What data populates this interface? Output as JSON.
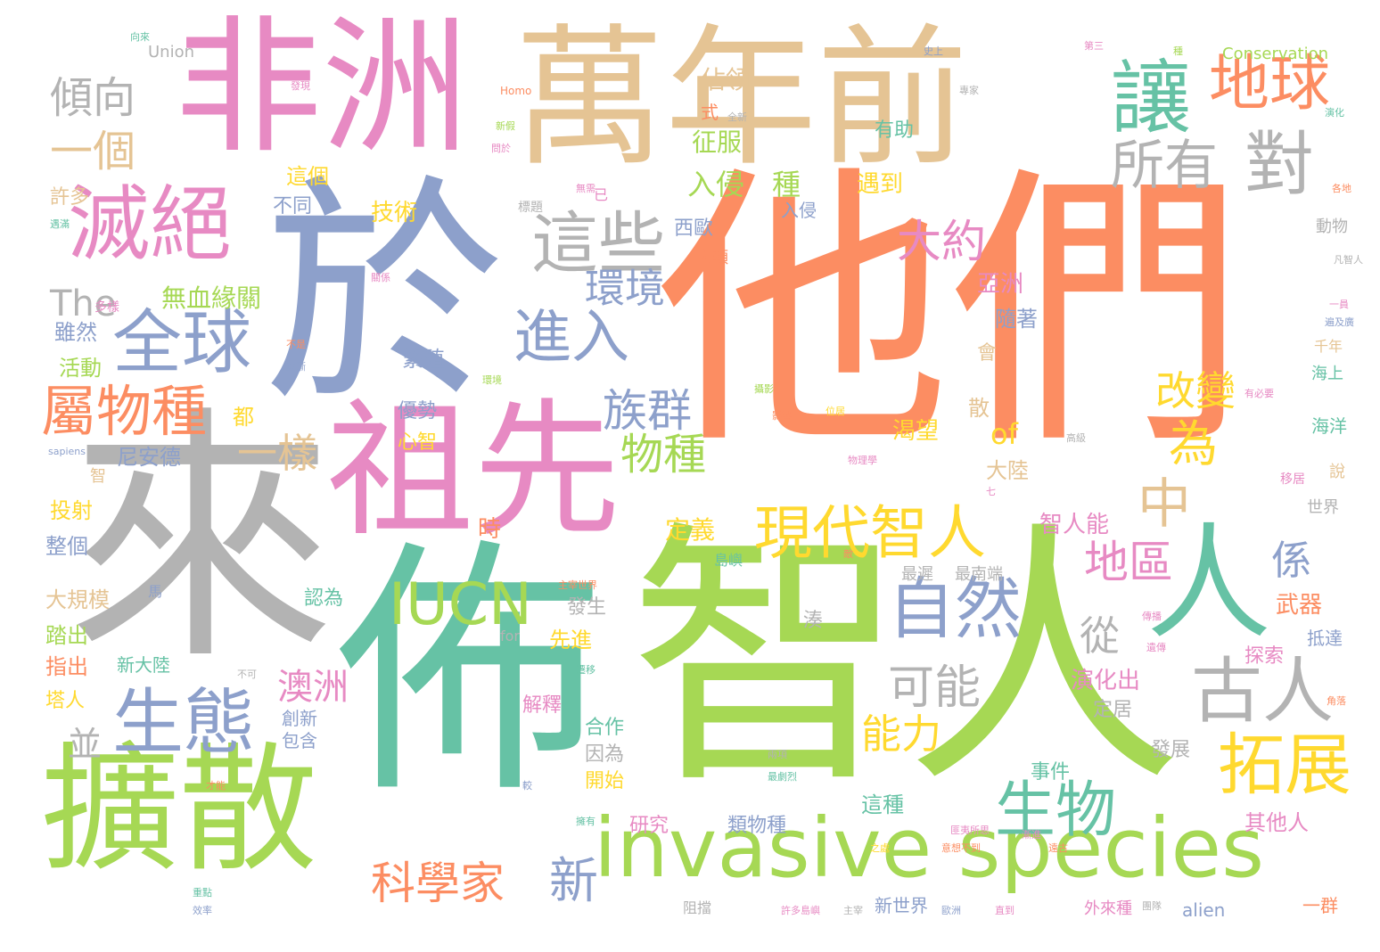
{
  "palette": {
    "orange": "#fc8d62",
    "gray": "#b3b3b3",
    "green": "#a6d854",
    "blue": "#8da0cb",
    "pink": "#e78ac3",
    "tan": "#e5c494",
    "teal": "#66c2a5",
    "yellow": "#ffd92f"
  },
  "words": [
    {
      "text": "他們",
      "color": "orange"
    },
    {
      "text": "智人",
      "color": "green"
    },
    {
      "text": "來",
      "color": "gray"
    },
    {
      "text": "佈",
      "color": "teal"
    },
    {
      "text": "於",
      "color": "blue"
    },
    {
      "text": "萬年前",
      "color": "tan"
    },
    {
      "text": "非洲",
      "color": "pink"
    },
    {
      "text": "祖先",
      "color": "pink"
    },
    {
      "text": "擴散",
      "color": "green"
    },
    {
      "text": "invasive species",
      "color": "green"
    },
    {
      "text": "人",
      "color": "teal"
    },
    {
      "text": "滅絕",
      "color": "pink"
    },
    {
      "text": "讓",
      "color": "teal"
    },
    {
      "text": "地球",
      "color": "orange"
    },
    {
      "text": "所有",
      "color": "gray"
    },
    {
      "text": "對",
      "color": "gray"
    },
    {
      "text": "這些",
      "color": "gray"
    },
    {
      "text": "全球",
      "color": "blue"
    },
    {
      "text": "生態",
      "color": "blue"
    },
    {
      "text": "自然",
      "color": "blue"
    },
    {
      "text": "古人",
      "color": "gray"
    },
    {
      "text": "拓展",
      "color": "yellow"
    },
    {
      "text": "生物",
      "color": "teal"
    },
    {
      "text": "現代智人",
      "color": "yellow"
    },
    {
      "text": "IUCN",
      "color": "green"
    },
    {
      "text": "屬物種",
      "color": "orange"
    },
    {
      "text": "進入",
      "color": "blue"
    },
    {
      "text": "族群",
      "color": "blue"
    },
    {
      "text": "地區",
      "color": "pink"
    },
    {
      "text": "科學家",
      "color": "orange"
    },
    {
      "text": "新",
      "color": "blue"
    },
    {
      "text": "傾向",
      "color": "gray"
    },
    {
      "text": "一個",
      "color": "tan"
    },
    {
      "text": "大約",
      "color": "pink"
    },
    {
      "text": "環境",
      "color": "blue"
    },
    {
      "text": "改變",
      "color": "yellow"
    },
    {
      "text": "中",
      "color": "tan"
    },
    {
      "text": "為",
      "color": "yellow"
    },
    {
      "text": "物種",
      "color": "green"
    },
    {
      "text": "可能",
      "color": "gray"
    },
    {
      "text": "能力",
      "color": "yellow"
    },
    {
      "text": "一樣",
      "color": "tan"
    },
    {
      "text": "係",
      "color": "blue"
    },
    {
      "text": "從",
      "color": "gray"
    },
    {
      "text": "澳洲",
      "color": "pink"
    },
    {
      "text": "The",
      "color": "gray"
    },
    {
      "text": "入侵",
      "color": "green"
    },
    {
      "text": "種",
      "color": "green"
    },
    {
      "text": "of",
      "color": "yellow"
    },
    {
      "text": "並",
      "color": "gray"
    },
    {
      "text": "佔領",
      "color": "tan"
    },
    {
      "text": "征服",
      "color": "green"
    },
    {
      "text": "有助",
      "color": "teal"
    },
    {
      "text": "遇到",
      "color": "yellow"
    },
    {
      "text": "技術",
      "color": "yellow"
    },
    {
      "text": "這個",
      "color": "yellow"
    },
    {
      "text": "許多",
      "color": "tan"
    },
    {
      "text": "不同",
      "color": "blue"
    },
    {
      "text": "西歐",
      "color": "blue"
    },
    {
      "text": "人類",
      "color": "orange"
    },
    {
      "text": "無血緣關",
      "color": "green"
    },
    {
      "text": "亞洲",
      "color": "pink"
    },
    {
      "text": "隨著",
      "color": "blue"
    },
    {
      "text": "雖然",
      "color": "blue"
    },
    {
      "text": "活動",
      "color": "green"
    },
    {
      "text": "繁殖",
      "color": "blue"
    },
    {
      "text": "優勢",
      "color": "blue"
    },
    {
      "text": "心智",
      "color": "yellow"
    },
    {
      "text": "都",
      "color": "yellow"
    },
    {
      "text": "渴望",
      "color": "yellow"
    },
    {
      "text": "散",
      "color": "tan"
    },
    {
      "text": "會",
      "color": "tan"
    },
    {
      "text": "尼安德",
      "color": "blue"
    },
    {
      "text": "大陸",
      "color": "tan"
    },
    {
      "text": "智人能",
      "color": "pink"
    },
    {
      "text": "定義",
      "color": "yellow"
    },
    {
      "text": "投射",
      "color": "yellow"
    },
    {
      "text": "整個",
      "color": "blue"
    },
    {
      "text": "時",
      "color": "orange"
    },
    {
      "text": "大規模",
      "color": "tan"
    },
    {
      "text": "認為",
      "color": "teal"
    },
    {
      "text": "發生",
      "color": "gray"
    },
    {
      "text": "先進",
      "color": "yellow"
    },
    {
      "text": "最遲",
      "color": "gray"
    },
    {
      "text": "最南端",
      "color": "gray"
    },
    {
      "text": "武器",
      "color": "orange"
    },
    {
      "text": "抵達",
      "color": "blue"
    },
    {
      "text": "踏出",
      "color": "green"
    },
    {
      "text": "指出",
      "color": "orange"
    },
    {
      "text": "新大陸",
      "color": "teal"
    },
    {
      "text": "塔人",
      "color": "yellow"
    },
    {
      "text": "湊",
      "color": "gray"
    },
    {
      "text": "演化出",
      "color": "pink"
    },
    {
      "text": "定居",
      "color": "gray"
    },
    {
      "text": "探索",
      "color": "pink"
    },
    {
      "text": "解釋",
      "color": "pink"
    },
    {
      "text": "創新",
      "color": "blue"
    },
    {
      "text": "包含",
      "color": "blue"
    },
    {
      "text": "合作",
      "color": "teal"
    },
    {
      "text": "因為",
      "color": "gray"
    },
    {
      "text": "開始",
      "color": "yellow"
    },
    {
      "text": "事件",
      "color": "teal"
    },
    {
      "text": "發展",
      "color": "gray"
    },
    {
      "text": "這種",
      "color": "teal"
    },
    {
      "text": "研究",
      "color": "pink"
    },
    {
      "text": "類物種",
      "color": "blue"
    },
    {
      "text": "其他人",
      "color": "pink"
    },
    {
      "text": "新世界",
      "color": "blue"
    },
    {
      "text": "一群",
      "color": "orange"
    },
    {
      "text": "外來種",
      "color": "pink"
    },
    {
      "text": "alien",
      "color": "blue"
    },
    {
      "text": "阻擋",
      "color": "gray"
    },
    {
      "text": "Union",
      "color": "gray"
    },
    {
      "text": "Conservation",
      "color": "green"
    },
    {
      "text": "Homo",
      "color": "orange"
    },
    {
      "text": "sapiens",
      "color": "blue"
    },
    {
      "text": "for",
      "color": "gray"
    },
    {
      "text": "式",
      "color": "orange"
    },
    {
      "text": "已",
      "color": "pink"
    },
    {
      "text": "標題",
      "color": "gray"
    },
    {
      "text": "入侵",
      "color": "blue"
    },
    {
      "text": "動物",
      "color": "gray"
    },
    {
      "text": "千年",
      "color": "tan"
    },
    {
      "text": "海上",
      "color": "teal"
    },
    {
      "text": "海洋",
      "color": "teal"
    },
    {
      "text": "說",
      "color": "tan"
    },
    {
      "text": "移居",
      "color": "pink"
    },
    {
      "text": "世界",
      "color": "gray"
    },
    {
      "text": "智",
      "color": "tan"
    },
    {
      "text": "多樣",
      "color": "pink"
    },
    {
      "text": "島嶼",
      "color": "teal"
    },
    {
      "text": "馬",
      "color": "blue"
    },
    {
      "text": "角落",
      "color": "orange"
    },
    {
      "text": "史上",
      "color": "blue"
    },
    {
      "text": "專家",
      "color": "gray"
    },
    {
      "text": "第三",
      "color": "pink"
    },
    {
      "text": "種",
      "color": "green"
    },
    {
      "text": "發現",
      "color": "pink"
    },
    {
      "text": "新假",
      "color": "green"
    },
    {
      "text": "問於",
      "color": "pink"
    },
    {
      "text": "全新",
      "color": "gray"
    },
    {
      "text": "無需",
      "color": "pink"
    },
    {
      "text": "遇滿",
      "color": "teal"
    },
    {
      "text": "不是",
      "color": "orange"
    },
    {
      "text": "演化",
      "color": "teal"
    },
    {
      "text": "逐漸",
      "color": "blue"
    },
    {
      "text": "影響",
      "color": "orange"
    },
    {
      "text": "位居",
      "color": "yellow"
    },
    {
      "text": "物理學",
      "color": "pink"
    },
    {
      "text": "遷移",
      "color": "teal"
    },
    {
      "text": "不可",
      "color": "gray"
    },
    {
      "text": "一員",
      "color": "pink"
    },
    {
      "text": "傳播",
      "color": "pink"
    },
    {
      "text": "擁有",
      "color": "teal"
    },
    {
      "text": "較",
      "color": "blue"
    },
    {
      "text": "才能",
      "color": "orange"
    },
    {
      "text": "重點",
      "color": "teal"
    },
    {
      "text": "效率",
      "color": "blue"
    },
    {
      "text": "許多島嶼",
      "color": "pink"
    },
    {
      "text": "主宰",
      "color": "gray"
    },
    {
      "text": "歐洲",
      "color": "blue"
    },
    {
      "text": "匪夷所思",
      "color": "pink"
    },
    {
      "text": "團隊",
      "color": "gray"
    },
    {
      "text": "意想不到",
      "color": "orange"
    },
    {
      "text": "之處",
      "color": "yellow"
    },
    {
      "text": "直到",
      "color": "pink"
    },
    {
      "text": "漸進",
      "color": "pink"
    },
    {
      "text": "最劇烈",
      "color": "teal"
    },
    {
      "text": "主宰世界",
      "color": "orange"
    },
    {
      "text": "遺傳",
      "color": "pink"
    },
    {
      "text": "高級",
      "color": "gray"
    },
    {
      "text": "兩項",
      "color": "gray"
    },
    {
      "text": "遠古",
      "color": "orange"
    },
    {
      "text": "攝影",
      "color": "green"
    },
    {
      "text": "遍及廣",
      "color": "blue"
    },
    {
      "text": "凡智人",
      "color": "gray"
    },
    {
      "text": "各地",
      "color": "orange"
    },
    {
      "text": "有必要",
      "color": "pink"
    },
    {
      "text": "關係",
      "color": "pink"
    },
    {
      "text": "環境",
      "color": "green"
    },
    {
      "text": "向來",
      "color": "teal"
    },
    {
      "text": "七",
      "color": "pink"
    },
    {
      "text": "敵",
      "color": "orange"
    }
  ]
}
